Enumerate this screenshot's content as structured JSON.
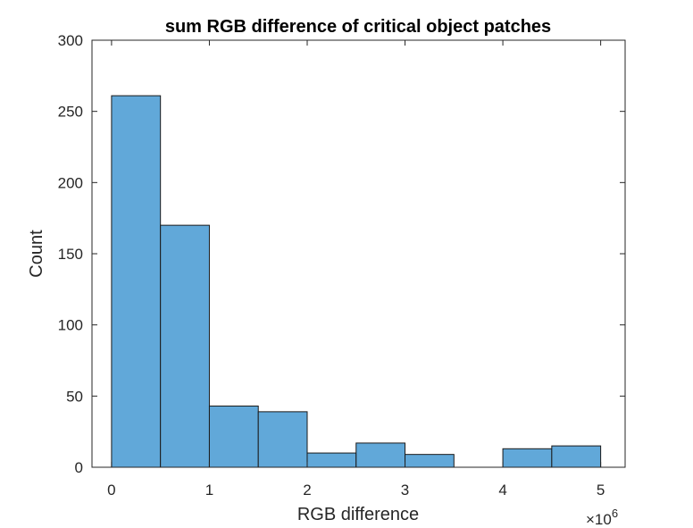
{
  "chart_data": {
    "type": "bar",
    "title": "sum RGB difference of critical object patches",
    "xlabel": "RGB difference",
    "ylabel": "Count",
    "x_exponent_label": "×10",
    "x_exponent_power": "6",
    "xlim": [
      -0.2,
      5.25
    ],
    "ylim": [
      0,
      300
    ],
    "xticks": [
      0,
      1,
      2,
      3,
      4,
      5
    ],
    "xtick_labels": [
      "0",
      "1",
      "2",
      "3",
      "4",
      "5"
    ],
    "yticks": [
      0,
      50,
      100,
      150,
      200,
      250,
      300
    ],
    "ytick_labels": [
      "0",
      "50",
      "100",
      "150",
      "200",
      "250",
      "300"
    ],
    "bin_edges": [
      0,
      0.5,
      1,
      1.5,
      2,
      2.5,
      3,
      3.5,
      4,
      4.5,
      5
    ],
    "values": [
      261,
      170,
      43,
      39,
      10,
      17,
      9,
      0,
      13,
      15
    ],
    "bar_color": "#61A8D9",
    "edge_color": "#1A1A1A",
    "axis_color": "#262626",
    "grid": false
  }
}
